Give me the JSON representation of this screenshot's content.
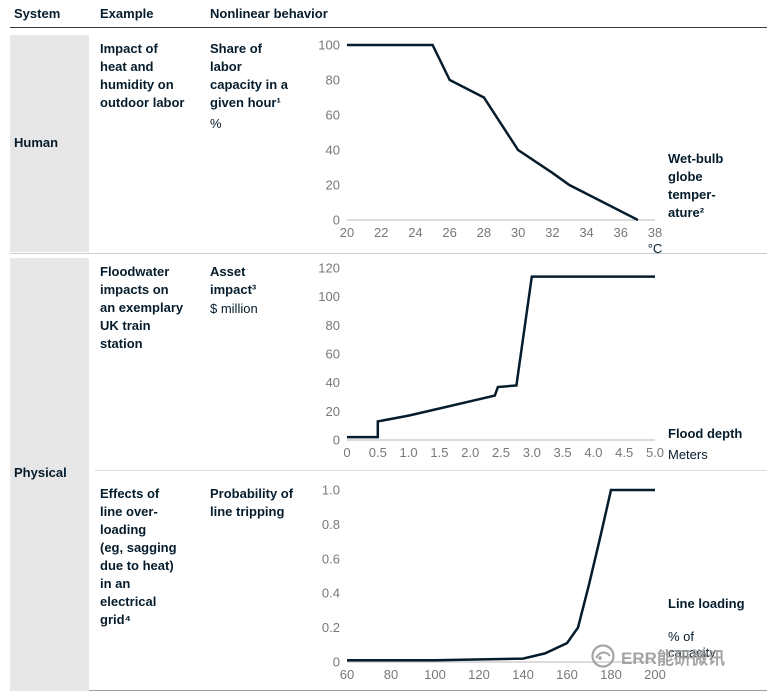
{
  "header": {
    "col_system": "System",
    "col_example": "Example",
    "col_behavior": "Nonlinear behavior"
  },
  "rows": [
    {
      "system": "Human",
      "example": "Impact of\nheat and\nhumidity on\noutdoor labor"
    },
    {
      "system": "Physical",
      "example": "Floodwater\nimpacts on\nan exemplary\nUK train\nstation"
    },
    {
      "example": "Effects of\nline over-\nloading\n(eg, sagging\ndue to heat)\nin an\nelectrical\ngrid⁴"
    }
  ],
  "colors": {
    "line": "#051c2c",
    "axis": "#b8b8b8",
    "tick": "#787878",
    "gray_cell": "#e7e7e7",
    "watermark": "#9b9b9b"
  },
  "watermark": {
    "text": "ERR能研微讯"
  },
  "chart_data": [
    {
      "type": "line",
      "title": "Share of\nlabor\ncapacity in a\ngiven hour¹",
      "unit": "%",
      "right_label": "Wet-bulb\nglobe\ntemper-\nature²",
      "x_axis_unit": "°C",
      "xlim": [
        20,
        38
      ],
      "ylim": [
        0,
        100
      ],
      "xticks": [
        "20",
        "22",
        "24",
        "26",
        "28",
        "30",
        "32",
        "34",
        "36",
        "38"
      ],
      "yticks": [
        "100",
        "80",
        "60",
        "40",
        "20",
        "0"
      ],
      "x": [
        20,
        25,
        26,
        28,
        30,
        32,
        33,
        37
      ],
      "y": [
        100,
        100,
        80,
        70,
        40,
        27,
        20,
        0
      ]
    },
    {
      "type": "line",
      "title": "Asset\nimpact³",
      "unit": "$ million",
      "right_label": "Flood depth",
      "right_sublabel": "Meters",
      "xlim": [
        0,
        5
      ],
      "ylim": [
        0,
        120
      ],
      "xticks": [
        "0",
        "0.5",
        "1.0",
        "1.5",
        "2.0",
        "2.5",
        "3.0",
        "3.5",
        "4.0",
        "4.5",
        "5.0"
      ],
      "yticks": [
        "120",
        "100",
        "80",
        "60",
        "40",
        "20",
        "0"
      ],
      "x": [
        0,
        0.5,
        0.5,
        1.0,
        1.5,
        2.0,
        2.4,
        2.45,
        2.75,
        3.0,
        5.0
      ],
      "y": [
        2,
        2,
        13,
        17,
        22,
        27,
        31,
        37,
        38,
        114,
        114
      ]
    },
    {
      "type": "line",
      "title": "Probability of\nline tripping",
      "unit": "",
      "right_label": "Line loading",
      "right_sublabel": "% of\ncapacity",
      "xlim": [
        60,
        200
      ],
      "ylim": [
        0,
        1
      ],
      "xticks": [
        "60",
        "80",
        "100",
        "120",
        "140",
        "160",
        "180",
        "200"
      ],
      "yticks": [
        "1.0",
        "0.8",
        "0.6",
        "0.4",
        "0.2",
        "0"
      ],
      "x": [
        60,
        100,
        140,
        150,
        160,
        165,
        170,
        175,
        180,
        200
      ],
      "y": [
        0.01,
        0.01,
        0.02,
        0.05,
        0.11,
        0.2,
        0.45,
        0.72,
        1.0,
        1.0
      ]
    }
  ]
}
